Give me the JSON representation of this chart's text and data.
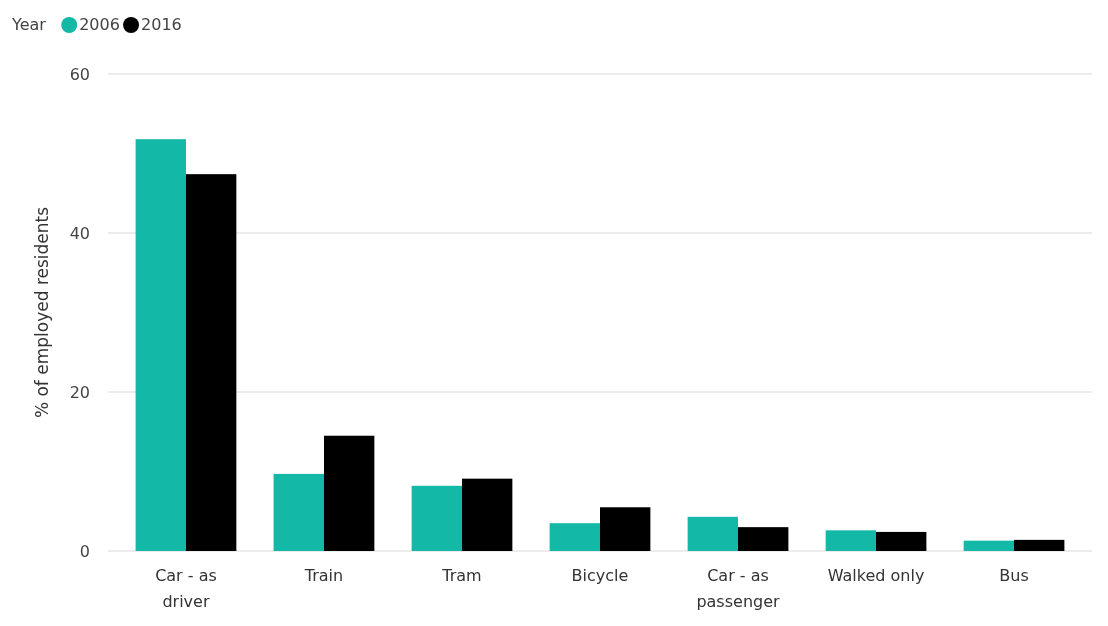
{
  "chart_data": {
    "type": "bar",
    "ylabel": "% of employed residents",
    "legend_title": "Year",
    "legend": "top left",
    "grid": "y",
    "categories": [
      "Car - as driver",
      "Train",
      "Tram",
      "Bicycle",
      "Car - as passenger",
      "Walked only",
      "Bus"
    ],
    "series": [
      {
        "name": "2006",
        "color": "#14b8a6",
        "values": [
          51.8,
          9.7,
          8.2,
          3.5,
          4.3,
          2.6,
          1.3
        ]
      },
      {
        "name": "2016",
        "color": "#000000",
        "values": [
          47.4,
          14.5,
          9.1,
          5.5,
          3.0,
          2.4,
          1.4
        ]
      }
    ],
    "ylim": [
      0,
      60
    ],
    "yticks": [
      0,
      20,
      40,
      60
    ]
  }
}
